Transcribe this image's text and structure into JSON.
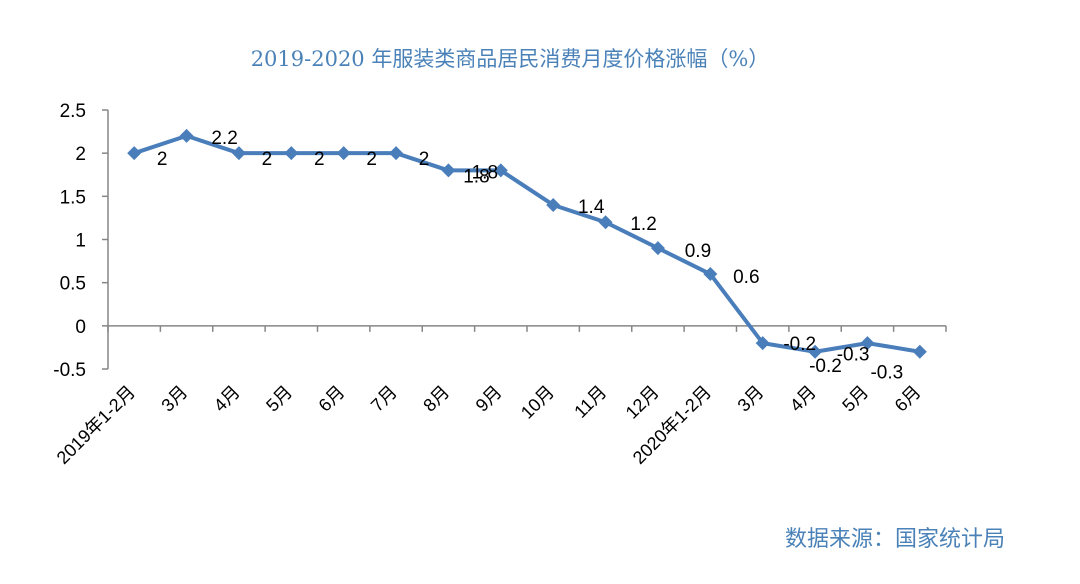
{
  "chart_data": {
    "type": "line",
    "title": "2019-2020 年服装类商品居民消费月度价格涨幅（%）",
    "source": "数据来源：国家统计局",
    "categories": [
      "2019年1-2月",
      "3月",
      "4月",
      "5月",
      "6月",
      "7月",
      "8月",
      "9月",
      "10月",
      "11月",
      "12月",
      "2020年1-2月",
      "3月",
      "4月",
      "5月",
      "6月"
    ],
    "series": [
      {
        "name": "服装类商品居民消费月度价格涨幅",
        "values": [
          2,
          2.2,
          2,
          2,
          2,
          2,
          1.8,
          1.8,
          1.4,
          1.2,
          0.9,
          0.6,
          -0.2,
          -0.3,
          -0.2,
          -0.3
        ]
      }
    ],
    "data_labels": [
      "2",
      "2.2",
      "2",
      "2",
      "2",
      "2",
      "1.8",
      "1.8",
      "1.4",
      "1.2",
      "0.9",
      "0.6",
      "-0.2",
      "-0.3",
      "-0.2",
      "-0.3"
    ],
    "yticks": [
      "-0.5",
      "0",
      "0.5",
      "1",
      "1.5",
      "2",
      "2.5"
    ],
    "ylim": [
      -0.5,
      2.5
    ],
    "line_color": "#4a7ebb",
    "xlabel": "",
    "ylabel": "",
    "grid": false
  }
}
